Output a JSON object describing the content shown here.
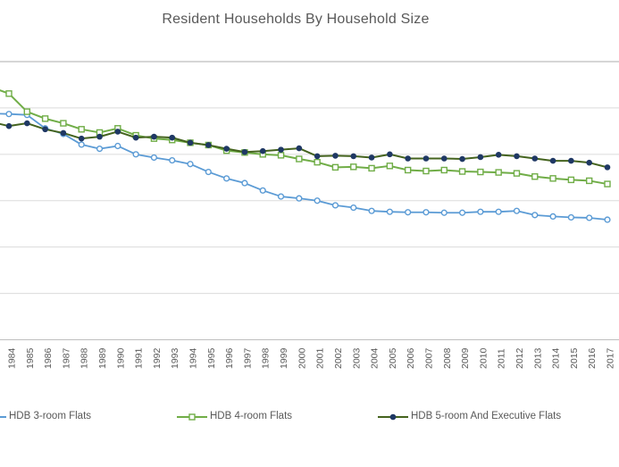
{
  "title": "Resident Households By Household Size",
  "chart_data": {
    "type": "line",
    "title": "Resident Households By Household Size",
    "xlabel": "",
    "ylabel": "",
    "ylim": [
      0,
      6
    ],
    "y_gridlines": [
      1,
      2,
      3,
      4,
      5,
      6
    ],
    "y_axis_labels_visible": false,
    "grid": true,
    "legend_position": "bottom",
    "x": [
      1984,
      1985,
      1986,
      1987,
      1988,
      1989,
      1990,
      1991,
      1992,
      1993,
      1994,
      1995,
      1996,
      1997,
      1998,
      1999,
      2000,
      2001,
      2002,
      2003,
      2004,
      2005,
      2006,
      2007,
      2008,
      2009,
      2010,
      2011,
      2012,
      2013,
      2014,
      2015,
      2016,
      2017
    ],
    "series": [
      {
        "id": "hdb-3-room",
        "name": "HDB 3-room Flats",
        "line_color": "#5B9BD5",
        "marker_color": "#5B9BD5",
        "marker": "open-circle",
        "line_width": 1.8,
        "lead_in_value": 4.88,
        "values": [
          4.87,
          4.85,
          4.56,
          4.44,
          4.21,
          4.12,
          4.18,
          4.0,
          3.93,
          3.87,
          3.79,
          3.62,
          3.48,
          3.38,
          3.22,
          3.09,
          3.05,
          3.0,
          2.9,
          2.85,
          2.78,
          2.76,
          2.75,
          2.75,
          2.74,
          2.74,
          2.76,
          2.76,
          2.78,
          2.69,
          2.66,
          2.64,
          2.63,
          2.59
        ]
      },
      {
        "id": "hdb-4-room",
        "name": "HDB 4-room Flats",
        "line_color": "#70AD47",
        "marker_color": "#70AD47",
        "marker": "open-square",
        "line_width": 2,
        "lead_in_value": 5.45,
        "values": [
          5.31,
          4.92,
          4.77,
          4.67,
          4.54,
          4.47,
          4.56,
          4.41,
          4.34,
          4.31,
          4.25,
          4.2,
          4.08,
          4.04,
          4.0,
          3.98,
          3.9,
          3.83,
          3.72,
          3.73,
          3.7,
          3.75,
          3.66,
          3.64,
          3.66,
          3.63,
          3.62,
          3.61,
          3.59,
          3.52,
          3.48,
          3.45,
          3.43,
          3.36
        ]
      },
      {
        "id": "hdb-5-room-exec",
        "name": "HDB 5-room And Executive Flats",
        "line_color": "#44631E",
        "marker_color": "#1F3864",
        "marker": "filled-circle",
        "line_width": 2,
        "lead_in_value": 4.7,
        "values": [
          4.61,
          4.67,
          4.54,
          4.46,
          4.34,
          4.38,
          4.49,
          4.36,
          4.38,
          4.36,
          4.25,
          4.2,
          4.12,
          4.05,
          4.07,
          4.1,
          4.13,
          3.96,
          3.97,
          3.96,
          3.93,
          4.0,
          3.91,
          3.91,
          3.91,
          3.9,
          3.94,
          3.99,
          3.96,
          3.91,
          3.86,
          3.86,
          3.82,
          3.72
        ]
      }
    ],
    "colors": {
      "title_text": "#595959",
      "tick_text": "#595959",
      "gridline": "#DBDBDB",
      "gridline_top": "#ACACAC",
      "axis_line": "#BFBFBF",
      "background": "#FFFFFF"
    }
  }
}
